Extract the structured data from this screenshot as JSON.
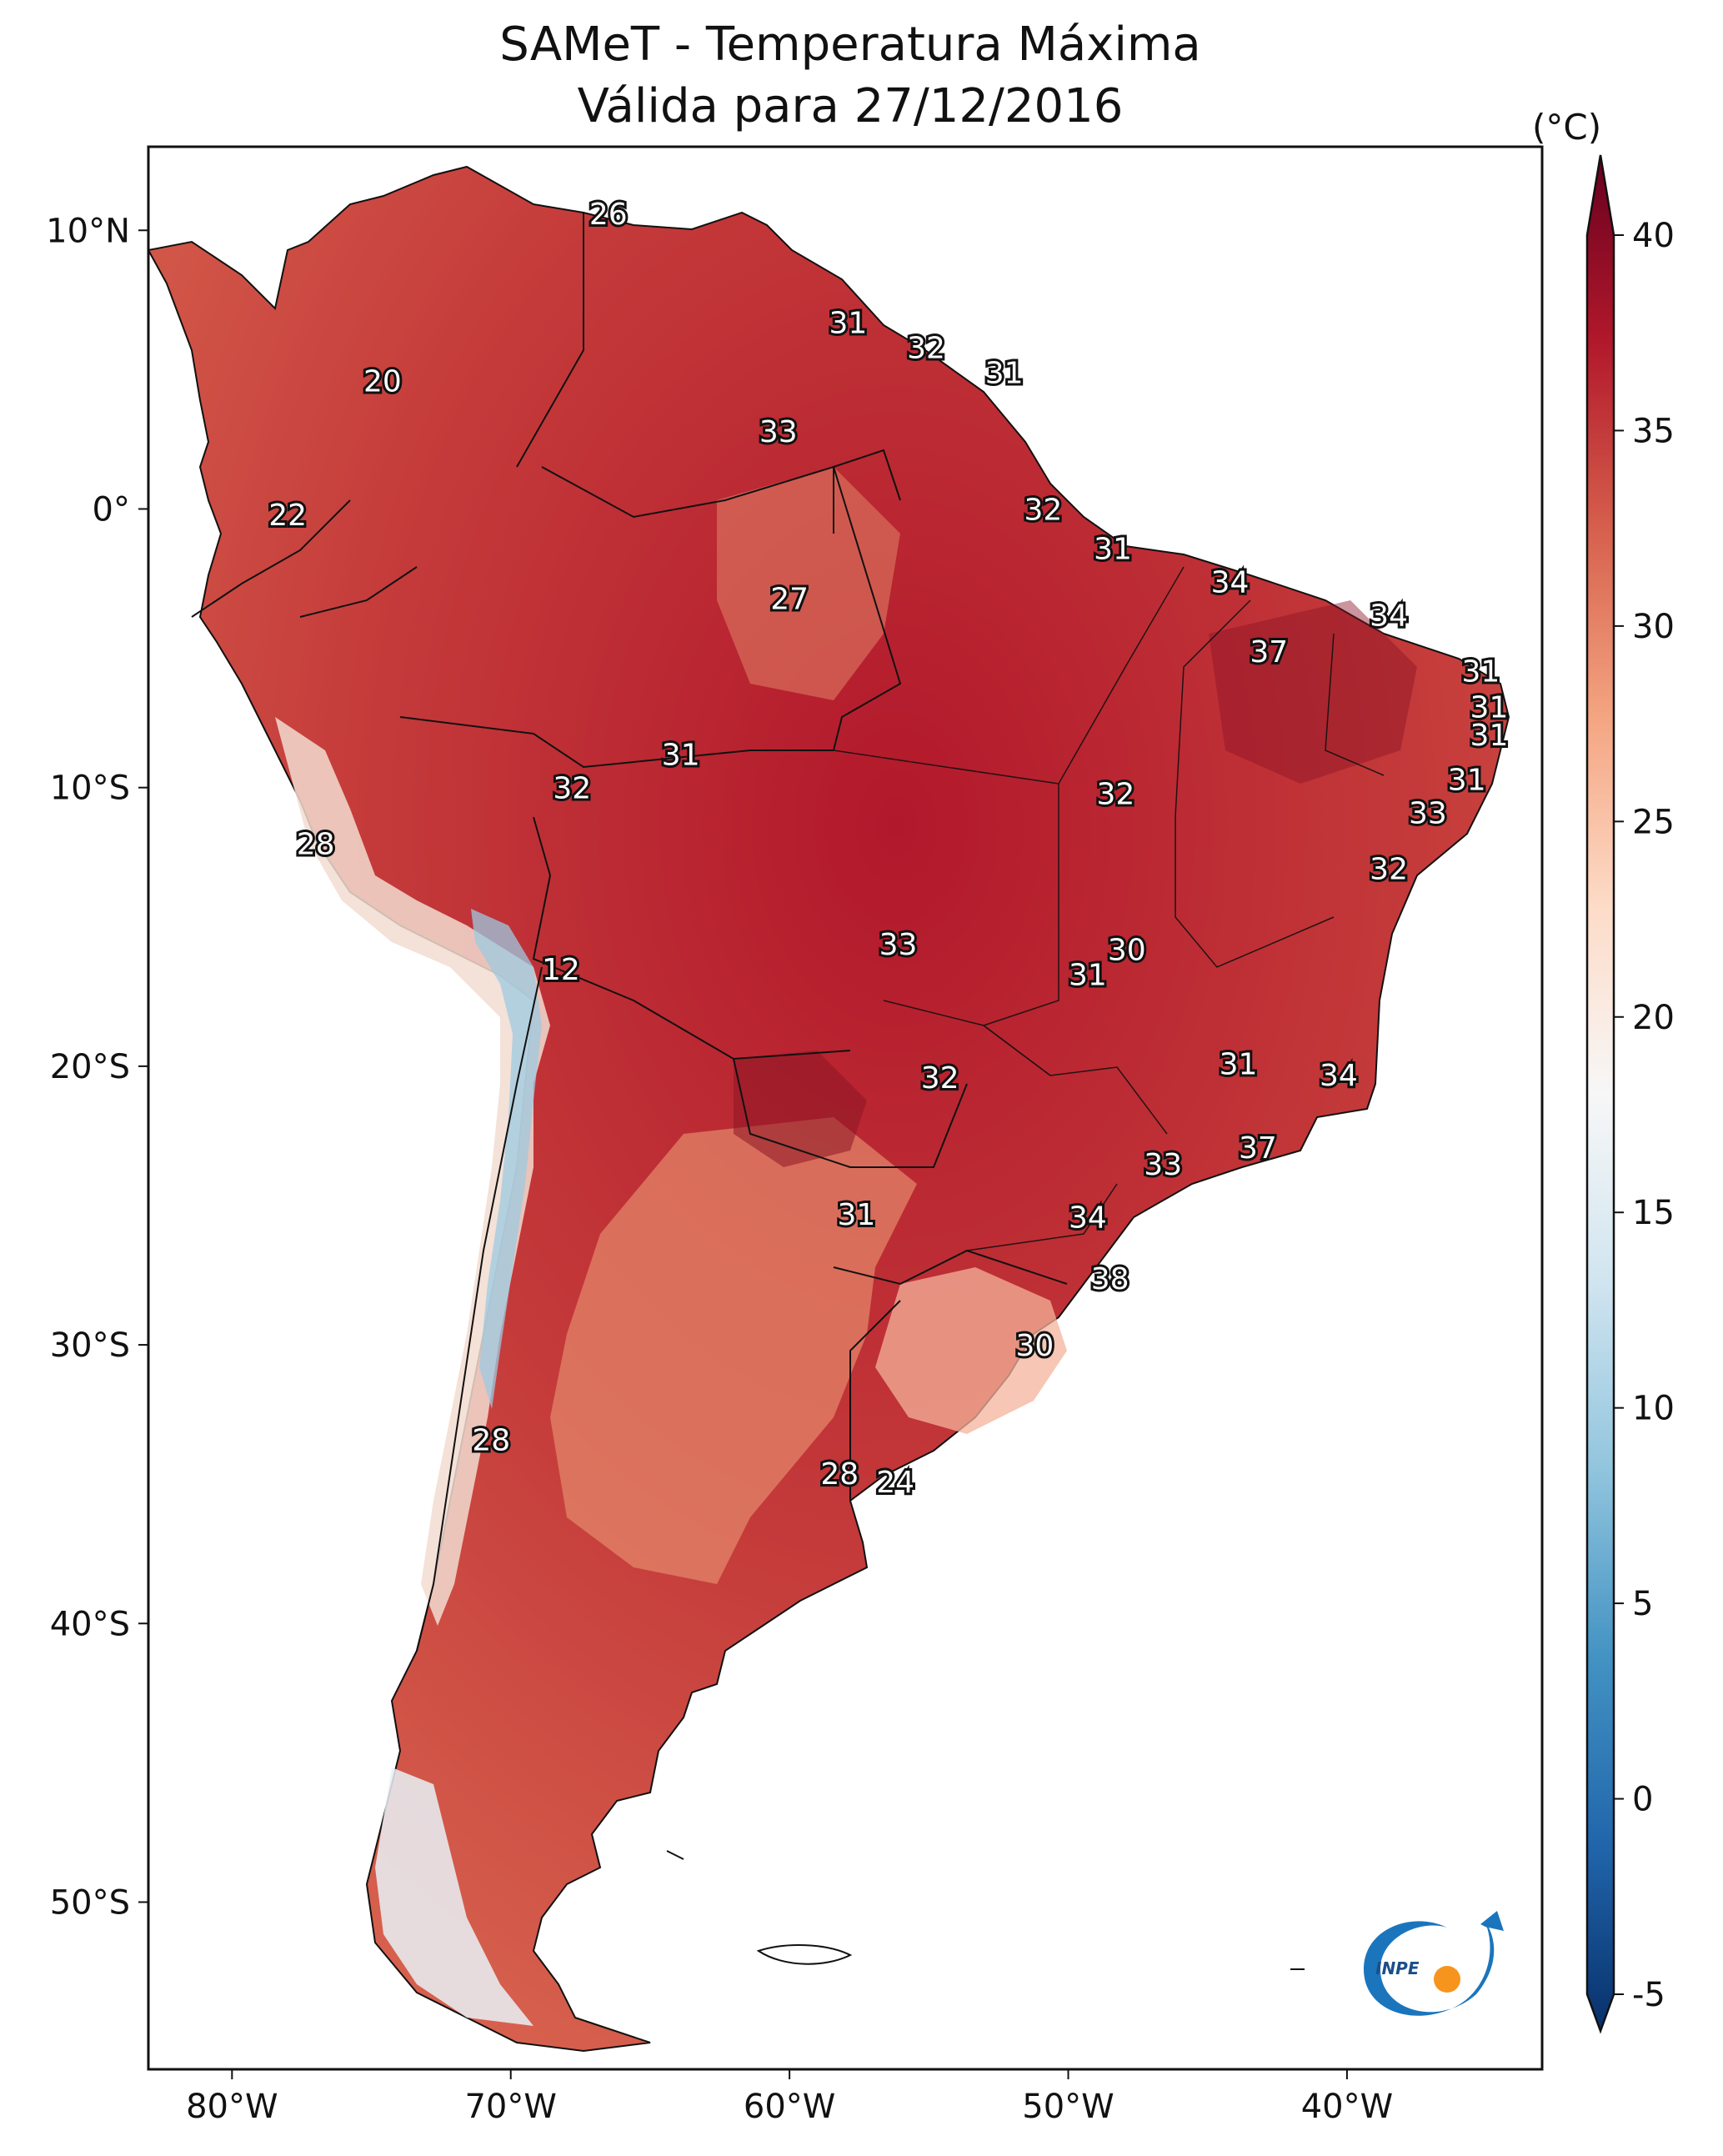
{
  "title": {
    "line1": "SAMeT - Temperatura Máxima",
    "line2": "Válida para 27/12/2016"
  },
  "colorbar": {
    "unit": "(°C)",
    "ticks": [
      "-5",
      "0",
      "5",
      "10",
      "15",
      "20",
      "25",
      "30",
      "35",
      "40"
    ],
    "min": -5,
    "max": 40,
    "colors": [
      "#08306b",
      "#2166ac",
      "#4393c3",
      "#92c5de",
      "#d1e5f0",
      "#f7f7f7",
      "#fddbc7",
      "#f4a582",
      "#d6604d",
      "#b2182b",
      "#67001f"
    ]
  },
  "axes": {
    "lat_ticks": [
      {
        "label": "10°N",
        "value": 10
      },
      {
        "label": "0°",
        "value": 0
      },
      {
        "label": "10°S",
        "value": -10
      },
      {
        "label": "20°S",
        "value": -20
      },
      {
        "label": "30°S",
        "value": -30
      },
      {
        "label": "40°S",
        "value": -40
      },
      {
        "label": "50°S",
        "value": -50
      }
    ],
    "lon_ticks": [
      {
        "label": "80°W",
        "value": -80
      },
      {
        "label": "70°W",
        "value": -70
      },
      {
        "label": "60°W",
        "value": -60
      },
      {
        "label": "50°W",
        "value": -50
      },
      {
        "label": "40°W",
        "value": -40
      }
    ],
    "lon_range": [
      -83,
      -33
    ],
    "lat_range": [
      -56,
      13
    ]
  },
  "station_values": [
    {
      "label": "26",
      "lon": -66.5,
      "lat": 10.6
    },
    {
      "label": "20",
      "lon": -74.6,
      "lat": 4.6
    },
    {
      "label": "22",
      "lon": -78.0,
      "lat": -0.2
    },
    {
      "label": "31",
      "lon": -57.9,
      "lat": 6.7
    },
    {
      "label": "32",
      "lon": -55.1,
      "lat": 5.8
    },
    {
      "label": "31",
      "lon": -52.3,
      "lat": 4.9
    },
    {
      "label": "33",
      "lon": -60.4,
      "lat": 2.8
    },
    {
      "label": "32",
      "lon": -50.9,
      "lat": 0.0
    },
    {
      "label": "31",
      "lon": -48.4,
      "lat": -1.4
    },
    {
      "label": "27",
      "lon": -60.0,
      "lat": -3.2
    },
    {
      "label": "34",
      "lon": -44.2,
      "lat": -2.6
    },
    {
      "label": "34",
      "lon": -38.5,
      "lat": -3.8
    },
    {
      "label": "37",
      "lon": -42.8,
      "lat": -5.1
    },
    {
      "label": "31",
      "lon": -35.2,
      "lat": -5.8
    },
    {
      "label": "31",
      "lon": -34.9,
      "lat": -7.1
    },
    {
      "label": "31",
      "lon": -34.9,
      "lat": -8.1
    },
    {
      "label": "31",
      "lon": -35.7,
      "lat": -9.7
    },
    {
      "label": "31",
      "lon": -63.9,
      "lat": -8.8
    },
    {
      "label": "32",
      "lon": -67.8,
      "lat": -10.0
    },
    {
      "label": "32",
      "lon": -48.3,
      "lat": -10.2
    },
    {
      "label": "33",
      "lon": -37.1,
      "lat": -10.9
    },
    {
      "label": "28",
      "lon": -77.0,
      "lat": -12.0
    },
    {
      "label": "32",
      "lon": -38.5,
      "lat": -12.9
    },
    {
      "label": "33",
      "lon": -56.1,
      "lat": -15.6
    },
    {
      "label": "30",
      "lon": -47.9,
      "lat": -15.8
    },
    {
      "label": "31",
      "lon": -49.3,
      "lat": -16.7
    },
    {
      "label": "12",
      "lon": -68.2,
      "lat": -16.5
    },
    {
      "label": "31",
      "lon": -43.9,
      "lat": -19.9
    },
    {
      "label": "34",
      "lon": -40.3,
      "lat": -20.3
    },
    {
      "label": "32",
      "lon": -54.6,
      "lat": -20.4
    },
    {
      "label": "37",
      "lon": -43.2,
      "lat": -22.9
    },
    {
      "label": "33",
      "lon": -46.6,
      "lat": -23.5
    },
    {
      "label": "31",
      "lon": -57.6,
      "lat": -25.3
    },
    {
      "label": "34",
      "lon": -49.3,
      "lat": -25.4
    },
    {
      "label": "38",
      "lon": -48.5,
      "lat": -27.6
    },
    {
      "label": "30",
      "lon": -51.2,
      "lat": -30.0
    },
    {
      "label": "28",
      "lon": -70.7,
      "lat": -33.4
    },
    {
      "label": "28",
      "lon": -58.2,
      "lat": -34.6
    },
    {
      "label": "24",
      "lon": -56.2,
      "lat": -34.9
    }
  ],
  "logo": {
    "text": "INPE",
    "colors": {
      "swoosh": "#1b75bc",
      "dot": "#f7941d"
    }
  }
}
